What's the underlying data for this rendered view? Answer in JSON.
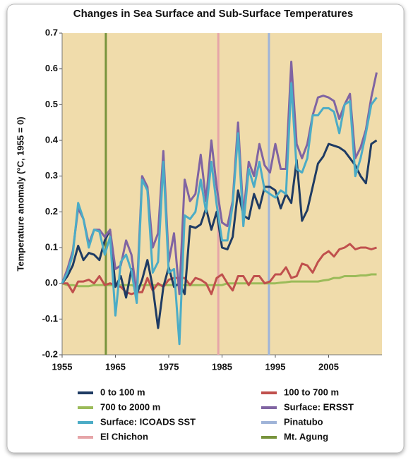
{
  "chart_data": {
    "type": "line",
    "title": "Changes in Sea Surface and Sub-Surface Temperatures",
    "ylabel": "Temperature anomaly (°C, 1955 = 0)",
    "xlim": [
      1955,
      2015
    ],
    "xticks": [
      1955,
      1965,
      1975,
      1985,
      1995,
      2005
    ],
    "ylim": [
      -0.2,
      0.7
    ],
    "yticks": [
      -0.2,
      -0.1,
      {
        "value": 0,
        "label": "0.0"
      },
      0.1,
      0.2,
      0.3,
      0.4,
      0.5,
      0.6,
      0.7
    ],
    "x": [
      1955,
      1956,
      1957,
      1958,
      1959,
      1960,
      1961,
      1962,
      1963,
      1964,
      1965,
      1966,
      1967,
      1968,
      1969,
      1970,
      1971,
      1972,
      1973,
      1974,
      1975,
      1976,
      1977,
      1978,
      1979,
      1980,
      1981,
      1982,
      1983,
      1984,
      1985,
      1986,
      1987,
      1988,
      1989,
      1990,
      1991,
      1992,
      1993,
      1994,
      1995,
      1996,
      1997,
      1998,
      1999,
      2000,
      2001,
      2002,
      2003,
      2004,
      2005,
      2006,
      2007,
      2008,
      2009,
      2010,
      2011,
      2012,
      2013,
      2014
    ],
    "series": [
      {
        "name": "0 to 100 m",
        "color": "#1f3b63",
        "values": [
          0,
          0.02,
          0.05,
          0.105,
          0.065,
          0.085,
          0.08,
          0.065,
          0.12,
          0.15,
          -0.01,
          0.02,
          -0.04,
          0.04,
          -0.03,
          0.01,
          0.065,
          -0.01,
          -0.125,
          -0.01,
          0.045,
          -0.01,
          0.0,
          -0.03,
          0.16,
          0.155,
          0.165,
          0.21,
          0.15,
          0.2,
          0.1,
          0.095,
          0.13,
          0.26,
          0.19,
          0.18,
          0.25,
          0.21,
          0.27,
          0.27,
          0.26,
          0.21,
          0.25,
          0.225,
          0.345,
          0.175,
          0.205,
          0.27,
          0.335,
          0.355,
          0.39,
          0.385,
          0.38,
          0.37,
          0.35,
          0.33,
          0.3,
          0.28,
          0.39,
          0.4
        ]
      },
      {
        "name": "100 to 700 m",
        "color": "#c0504d",
        "values": [
          0,
          0.0,
          -0.025,
          0.005,
          0.005,
          0.01,
          0.0,
          0.02,
          -0.005,
          0.0,
          -0.005,
          -0.01,
          -0.025,
          -0.03,
          -0.025,
          -0.025,
          0.015,
          -0.02,
          0.0,
          -0.01,
          0.01,
          0.015,
          0.015,
          0.015,
          -0.005,
          0.015,
          0.01,
          0.0,
          -0.03,
          0.015,
          0.025,
          0.0,
          -0.02,
          0.02,
          0.02,
          -0.005,
          0.02,
          0.02,
          0.0,
          0.005,
          0.025,
          0.025,
          0.045,
          0.015,
          0.02,
          0.055,
          0.05,
          0.03,
          0.06,
          0.08,
          0.09,
          0.075,
          0.095,
          0.1,
          0.11,
          0.095,
          0.1,
          0.1,
          0.095,
          0.1
        ]
      },
      {
        "name": "700 to 2000 m",
        "color": "#9bbb59",
        "values": [
          0,
          -0.005,
          -0.005,
          -0.008,
          -0.008,
          -0.008,
          -0.005,
          -0.005,
          -0.005,
          -0.005,
          -0.005,
          -0.005,
          -0.005,
          -0.005,
          -0.01,
          -0.005,
          -0.005,
          -0.005,
          -0.005,
          -0.005,
          -0.005,
          -0.005,
          -0.005,
          -0.005,
          -0.005,
          -0.005,
          -0.005,
          -0.005,
          -0.005,
          -0.005,
          -0.005,
          0.0,
          0.0,
          0.0,
          0.0,
          0.0,
          0.0,
          0.0,
          0.0,
          0.0,
          0.0,
          0.002,
          0.003,
          0.005,
          0.005,
          0.005,
          0.005,
          0.005,
          0.005,
          0.008,
          0.01,
          0.015,
          0.015,
          0.02,
          0.02,
          0.02,
          0.022,
          0.022,
          0.025,
          0.025
        ]
      },
      {
        "name": "Surface: ERSST",
        "color": "#8064a2",
        "values": [
          0,
          0.04,
          0.09,
          0.21,
          0.18,
          0.11,
          0.15,
          0.15,
          0.13,
          0.15,
          0.04,
          0.05,
          0.12,
          0.08,
          -0.03,
          0.3,
          0.27,
          0.1,
          0.14,
          0.37,
          0.06,
          0.14,
          -0.03,
          0.29,
          0.23,
          0.25,
          0.36,
          0.23,
          0.4,
          0.27,
          0.17,
          0.16,
          0.23,
          0.45,
          0.19,
          0.34,
          0.3,
          0.39,
          0.33,
          0.31,
          0.39,
          0.32,
          0.32,
          0.62,
          0.39,
          0.35,
          0.39,
          0.47,
          0.52,
          0.525,
          0.52,
          0.51,
          0.46,
          0.5,
          0.53,
          0.35,
          0.38,
          0.43,
          0.52,
          0.59
        ]
      },
      {
        "name": "Surface: ICOADS SST",
        "color": "#4bacc6",
        "values": [
          0,
          0.03,
          0.08,
          0.225,
          0.18,
          0.1,
          0.15,
          0.145,
          0.08,
          0.13,
          -0.09,
          0.06,
          0.08,
          0.035,
          -0.055,
          0.29,
          0.26,
          0.03,
          0.06,
          0.34,
          0.03,
          0.04,
          -0.17,
          0.19,
          0.18,
          0.2,
          0.29,
          0.2,
          0.34,
          0.22,
          0.12,
          0.12,
          0.22,
          0.42,
          0.16,
          0.32,
          0.27,
          0.34,
          0.26,
          0.25,
          0.24,
          0.26,
          0.25,
          0.56,
          0.32,
          0.31,
          0.35,
          0.47,
          0.47,
          0.49,
          0.49,
          0.48,
          0.42,
          0.5,
          0.51,
          0.3,
          0.35,
          0.42,
          0.5,
          0.52
        ]
      }
    ],
    "events": [
      {
        "name": "Pinatubo",
        "color": "#9fb4d8",
        "x": 1993.8
      },
      {
        "name": "El Chichon",
        "color": "#e6a5a8",
        "x": 1984.3
      },
      {
        "name": "Mt. Agung",
        "color": "#77933c",
        "x": 1963.2
      }
    ]
  }
}
